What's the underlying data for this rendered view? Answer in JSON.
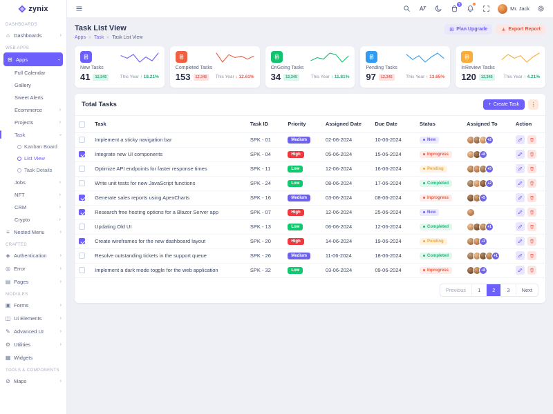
{
  "colors": {
    "primary": "#6c5ffc",
    "danger": "#e6533c",
    "success": "#1fae7e",
    "warning": "#f2a33c",
    "info": "#2f9bf4"
  },
  "brand": {
    "name": "zynix"
  },
  "topbar": {
    "icons": [
      "search-icon",
      "translate-icon",
      "moon-icon",
      "cart-icon",
      "bell-icon",
      "fullscreen-icon",
      "settings-icon"
    ],
    "cart_badge": "5",
    "user_name": "Mr. Jack"
  },
  "page_header": {
    "title": "Task List View",
    "breadcrumb": [
      "Apps",
      "Task",
      "Task List View"
    ],
    "plan_upgrade_label": "Plan Upgrade",
    "export_report_label": "Export Report"
  },
  "sidebar": {
    "icon_glyphs": {
      "home-icon": "⌂",
      "apps-grid-icon": "⊞",
      "nested-menu-icon": "≡",
      "authentication-lock-icon": "◈",
      "error-icon": "◎",
      "pages-icon": "▤",
      "forms-icon": "▣",
      "ui-elements-icon": "◫",
      "advanced-ui-icon": "✎",
      "utilities-icon": "⚙",
      "widgets-icon": "▦",
      "maps-icon": "⊘"
    },
    "items": [
      {
        "type": "section",
        "label": "DASHBOARDS"
      },
      {
        "type": "item",
        "label": "Dashboards",
        "icon": "home-icon",
        "chevron": "right"
      },
      {
        "type": "section",
        "label": "WEB APPS"
      },
      {
        "type": "item",
        "label": "Apps",
        "icon": "apps-grid-icon",
        "chevron": "down",
        "active": true
      },
      {
        "type": "child",
        "label": "Full Calendar"
      },
      {
        "type": "child",
        "label": "Gallery"
      },
      {
        "type": "child",
        "label": "Sweet Alerts"
      },
      {
        "type": "child",
        "label": "Ecommerce",
        "chevron": "right"
      },
      {
        "type": "child",
        "label": "Projects",
        "chevron": "right"
      },
      {
        "type": "child",
        "label": "Task",
        "chevron": "down",
        "active": true
      },
      {
        "type": "grandchild",
        "label": "Kanban Board"
      },
      {
        "type": "grandchild",
        "label": "List View",
        "active": true
      },
      {
        "type": "grandchild",
        "label": "Task Details"
      },
      {
        "type": "child",
        "label": "Jobs",
        "chevron": "right"
      },
      {
        "type": "child",
        "label": "NFT",
        "chevron": "right"
      },
      {
        "type": "child",
        "label": "CRM",
        "chevron": "right"
      },
      {
        "type": "child",
        "label": "Crypto",
        "chevron": "right"
      },
      {
        "type": "item",
        "label": "Nested Menu",
        "icon": "nested-menu-icon",
        "chevron": "right"
      },
      {
        "type": "section",
        "label": "CRAFTED"
      },
      {
        "type": "item",
        "label": "Authentication",
        "icon": "authentication-lock-icon",
        "chevron": "right"
      },
      {
        "type": "item",
        "label": "Error",
        "icon": "error-icon",
        "chevron": "right"
      },
      {
        "type": "item",
        "label": "Pages",
        "icon": "pages-icon",
        "chevron": "right"
      },
      {
        "type": "section",
        "label": "MODULES"
      },
      {
        "type": "item",
        "label": "Forms",
        "icon": "forms-icon",
        "chevron": "right"
      },
      {
        "type": "item",
        "label": "Ui Elements",
        "icon": "ui-elements-icon",
        "chevron": "right"
      },
      {
        "type": "item",
        "label": "Advanced UI",
        "icon": "advanced-ui-icon",
        "chevron": "right"
      },
      {
        "type": "item",
        "label": "Utilities",
        "icon": "utilities-icon",
        "chevron": "right"
      },
      {
        "type": "item",
        "label": "Widgets",
        "icon": "widgets-icon"
      },
      {
        "type": "section",
        "label": "TOOLS & COMPONENTS"
      },
      {
        "type": "item",
        "label": "Maps",
        "icon": "maps-icon",
        "chevron": "right"
      }
    ]
  },
  "stat_cards": [
    {
      "label": "New Tasks",
      "value": "41",
      "badge": "12,345",
      "badge_tone": "success",
      "this_year_label": "This Year",
      "direction": "up",
      "change": "18.21%",
      "change_tone": "success",
      "accent": "#6c5ffc",
      "spark": [
        7,
        5,
        8,
        2,
        6,
        3,
        9
      ]
    },
    {
      "label": "Completed Tasks",
      "value": "153",
      "badge": "12,345",
      "badge_tone": "danger",
      "this_year_label": "This Year",
      "direction": "down",
      "change": "12.61%",
      "change_tone": "danger",
      "accent": "#f0603f",
      "spark": [
        8,
        2,
        7,
        5,
        6,
        4,
        6
      ]
    },
    {
      "label": "OnGoing Tasks",
      "value": "34",
      "badge": "12,345",
      "badge_tone": "success",
      "this_year_label": "This Year",
      "direction": "up",
      "change": "11.81%",
      "change_tone": "success",
      "accent": "#14c26f",
      "spark": [
        4,
        6,
        5,
        9,
        8,
        3,
        7
      ]
    },
    {
      "label": "Pending Tasks",
      "value": "97",
      "badge": "12,345",
      "badge_tone": "danger",
      "this_year_label": "This Year",
      "direction": "up",
      "change": "13.65%",
      "change_tone": "danger",
      "accent": "#2f9bf4",
      "spark": [
        8,
        4,
        7,
        2,
        6,
        9,
        5
      ]
    },
    {
      "label": "InReview Tasks",
      "value": "120",
      "badge": "12,345",
      "badge_tone": "success",
      "this_year_label": "This Year",
      "direction": "up",
      "change": "4.21%",
      "change_tone": "success",
      "accent": "#f9ad3d",
      "spark": [
        4,
        8,
        5,
        7,
        2,
        6,
        9
      ]
    }
  ],
  "task_table": {
    "title": "Total Tasks",
    "create_task_label": "Create Task",
    "columns": [
      "Task",
      "Task ID",
      "Priority",
      "Assigned Date",
      "Due Date",
      "Status",
      "Assigned To",
      "Action"
    ],
    "rows": [
      {
        "task": "Implement a sticky navigation bar",
        "id": "SPK - 01",
        "priority": "Medium",
        "assigned": "02-06-2024",
        "due": "10-06-2024",
        "status": "New",
        "avatars": 3,
        "more": "+2",
        "checked": false
      },
      {
        "task": "Integrate new UI components",
        "id": "SPK - 04",
        "priority": "High",
        "assigned": "05-06-2024",
        "due": "15-06-2024",
        "status": "Inprogress",
        "avatars": 2,
        "more": "+8",
        "checked": true
      },
      {
        "task": "Optimize API endpoints for faster response times",
        "id": "SPK - 11",
        "priority": "Low",
        "assigned": "12-06-2024",
        "due": "16-06-2024",
        "status": "Pending",
        "avatars": 3,
        "more": "+5",
        "checked": false
      },
      {
        "task": "Write unit tests for new JavaScript functions",
        "id": "SPK - 24",
        "priority": "Low",
        "assigned": "08-06-2024",
        "due": "17-06-2024",
        "status": "Completed",
        "avatars": 3,
        "more": "+2",
        "checked": false
      },
      {
        "task": "Generate sales reports using ApexCharts",
        "id": "SPK - 16",
        "priority": "Medium",
        "assigned": "03-06-2024",
        "due": "08-06-2024",
        "status": "Inprogress",
        "avatars": 2,
        "more": "+5",
        "checked": true
      },
      {
        "task": "Research free hosting options for a Blazor Server app",
        "id": "SPK - 07",
        "priority": "High",
        "assigned": "12-06-2024",
        "due": "25-06-2024",
        "status": "New",
        "avatars": 1,
        "more": null,
        "checked": true
      },
      {
        "task": "Updating Old UI",
        "id": "SPK - 13",
        "priority": "Low",
        "assigned": "06-06-2024",
        "due": "12-06-2024",
        "status": "Completed",
        "avatars": 3,
        "more": "+1",
        "checked": false
      },
      {
        "task": "Create wireframes for the new dashboard layout",
        "id": "SPK - 20",
        "priority": "High",
        "assigned": "14-06-2024",
        "due": "19-06-2024",
        "status": "Pending",
        "avatars": 2,
        "more": "+2",
        "checked": true
      },
      {
        "task": "Resolve outstanding tickets in the support queue",
        "id": "SPK - 26",
        "priority": "Medium",
        "assigned": "11-06-2024",
        "due": "18-06-2024",
        "status": "Completed",
        "avatars": 4,
        "more": "+1",
        "checked": false
      },
      {
        "task": "Implement a dark mode toggle for the web application",
        "id": "SPK - 32",
        "priority": "Low",
        "assigned": "03-06-2024",
        "due": "09-06-2024",
        "status": "Inprogress",
        "avatars": 2,
        "more": "+8",
        "checked": false
      }
    ],
    "pagination": {
      "previous_label": "Previous",
      "pages": [
        "1",
        "2",
        "3"
      ],
      "active_page": "2",
      "next_label": "Next"
    }
  }
}
